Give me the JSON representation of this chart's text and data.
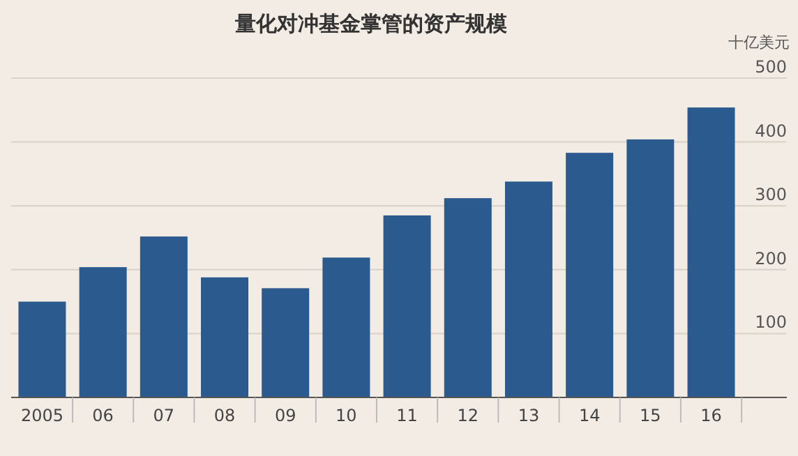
{
  "chart_data": {
    "type": "bar",
    "title": "量化对冲基金掌管的资产规模",
    "ylabel": "十亿美元",
    "categories": [
      "2005",
      "06",
      "07",
      "08",
      "09",
      "10",
      "11",
      "12",
      "13",
      "14",
      "15",
      "16"
    ],
    "values": [
      150,
      204,
      252,
      188,
      171,
      219,
      285,
      312,
      338,
      383,
      404,
      454
    ],
    "color": "#2b5b8e",
    "ylim": [
      0,
      500
    ],
    "yticks": [
      100,
      200,
      300,
      400,
      500
    ],
    "grid": "y"
  }
}
